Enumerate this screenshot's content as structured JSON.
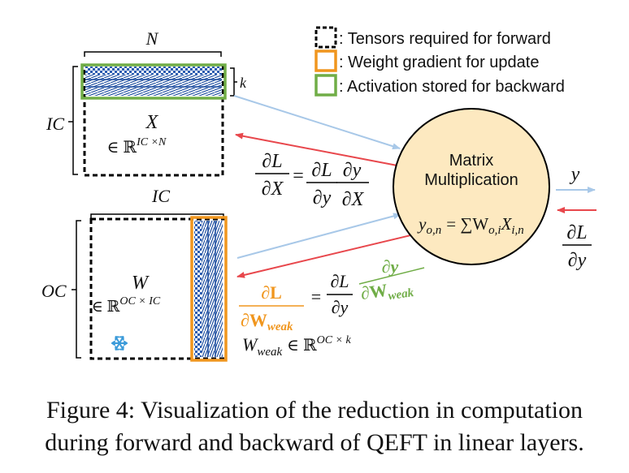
{
  "legend": {
    "forward": ": Tensors required for forward",
    "gradient": ": Weight gradient for update",
    "activation": ": Activation stored for backward"
  },
  "x_block": {
    "width_label": "N",
    "height_label": "IC",
    "slice_label": "k",
    "name": "X",
    "space_prefix": "∈ ℝ",
    "space_sup": "IC ×N"
  },
  "w_block": {
    "width_label": "IC",
    "height_label": "OC",
    "name": "W",
    "space_prefix": "∈ ℝ",
    "space_sup": "OC × IC",
    "frozen_icon": "snowflake-icon"
  },
  "w_weak": {
    "name": "W",
    "sub": "weak",
    "space_prefix": "∈ ℝ",
    "space_sup": "OC × k"
  },
  "matmul": {
    "title_line1": "Matrix",
    "title_line2": "Multiplication",
    "equation_lhs": "y",
    "equation_lhs_sub": "o,n",
    "equation_eq": "= ∑W",
    "equation_w_sub": "o,i",
    "equation_x": "X",
    "equation_x_sub": "i,n"
  },
  "output": {
    "y_label": "y",
    "grad_num": "∂L",
    "grad_den": "∂y"
  },
  "grad_x": {
    "lhs_num": "∂L",
    "lhs_den": "∂X",
    "eq": "=",
    "r1_num": "∂L",
    "r1_den": "∂y",
    "r2_num": "∂y",
    "r2_den": "∂X"
  },
  "grad_w": {
    "lhs_num": "∂L",
    "lhs_den": "∂W",
    "lhs_den_sub": "weak",
    "eq": "=",
    "r1_num": "∂L",
    "r1_den": "∂y",
    "r2_num": "∂y",
    "r2_den": "∂W",
    "r2_den_sub": "weak"
  },
  "colors": {
    "forward_arrow": "#a8c8e8",
    "backward_arrow": "#e8474c",
    "gradient_orange": "#f0961e",
    "activation_green": "#70ad47",
    "circle_fill": "#fde9c0",
    "hatch_blue": "#1f4fa0"
  },
  "caption": {
    "line1": "Figure 4: Visualization of the reduction in computation",
    "line2": "during forward and backward of QEFT in linear layers."
  }
}
